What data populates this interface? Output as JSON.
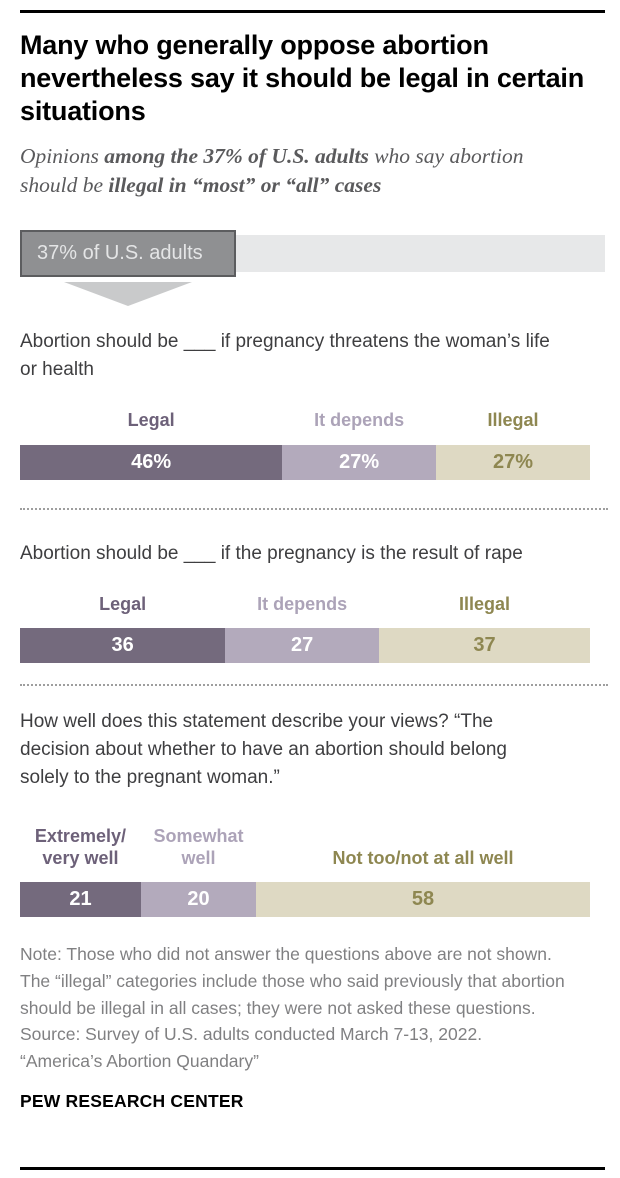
{
  "header": {
    "title": "Many who generally oppose abortion nevertheless say it should be legal in certain situations",
    "subtitle_segments": [
      {
        "text": "Opinions ",
        "bold": false
      },
      {
        "text": "among the 37% of U.S. adults",
        "bold": true
      },
      {
        "text": " who say abortion should be ",
        "bold": false
      },
      {
        "text": "illegal in “most” or “all” cases",
        "bold": true
      }
    ]
  },
  "colors": {
    "palette": {
      "legal": {
        "bar": "#746a7d",
        "label": "#6d6179",
        "value": "#ffffff"
      },
      "depends": {
        "bar": "#b3aabc",
        "label": "#aca3b8",
        "value": "#ffffff"
      },
      "illegal": {
        "bar": "#ded9c3",
        "label": "#8e8751",
        "value": "#8e8751"
      }
    },
    "band_background": "#e7e8e9",
    "population_box_background": "#8f9092",
    "population_box_border": "#5c5d5f",
    "arrow": "#c9cacb",
    "rule": "#000000",
    "dotted_separator": "#9e9e9e"
  },
  "chart_data": [
    {
      "type": "bar",
      "role": "population-highlight",
      "label": "37% of U.S. adults",
      "value": 37,
      "max": 100
    },
    {
      "type": "bar",
      "stacked": true,
      "question": "Abortion should be ___ if pregnancy threatens the woman’s life or health",
      "categories": [
        "Legal",
        "It depends",
        "Illegal"
      ],
      "values": [
        46,
        27,
        27
      ],
      "value_labels": [
        "46%",
        "27%",
        "27%"
      ],
      "segment_styles": [
        "legal",
        "depends",
        "illegal"
      ],
      "xlim": [
        0,
        100
      ],
      "unit": "%"
    },
    {
      "type": "bar",
      "stacked": true,
      "question": "Abortion should be ___ if the pregnancy is the result of rape",
      "categories": [
        "Legal",
        "It depends",
        "Illegal"
      ],
      "values": [
        36,
        27,
        37
      ],
      "value_labels": [
        "36",
        "27",
        "37"
      ],
      "segment_styles": [
        "legal",
        "depends",
        "illegal"
      ],
      "xlim": [
        0,
        100
      ],
      "unit": "%"
    },
    {
      "type": "bar",
      "stacked": true,
      "question": "How well does this statement describe your views? “The decision about whether to have an abortion should belong solely to the pregnant woman.”",
      "categories": [
        "Extremely/\nvery well",
        "Somewhat\nwell",
        "Not too/not at all well"
      ],
      "values": [
        21,
        20,
        58
      ],
      "value_labels": [
        "21",
        "20",
        "58"
      ],
      "segment_styles": [
        "legal",
        "depends",
        "illegal"
      ],
      "xlim": [
        0,
        100
      ],
      "unit": "%"
    }
  ],
  "notes": {
    "note": "Note: Those who did not answer the questions above are not shown. The “illegal” categories include those who said previously that abortion should be illegal in all cases; they were not asked these questions.",
    "source": "Source: Survey of U.S. adults conducted March 7-13, 2022. “America’s Abortion Quandary”",
    "brand": "PEW RESEARCH CENTER"
  }
}
